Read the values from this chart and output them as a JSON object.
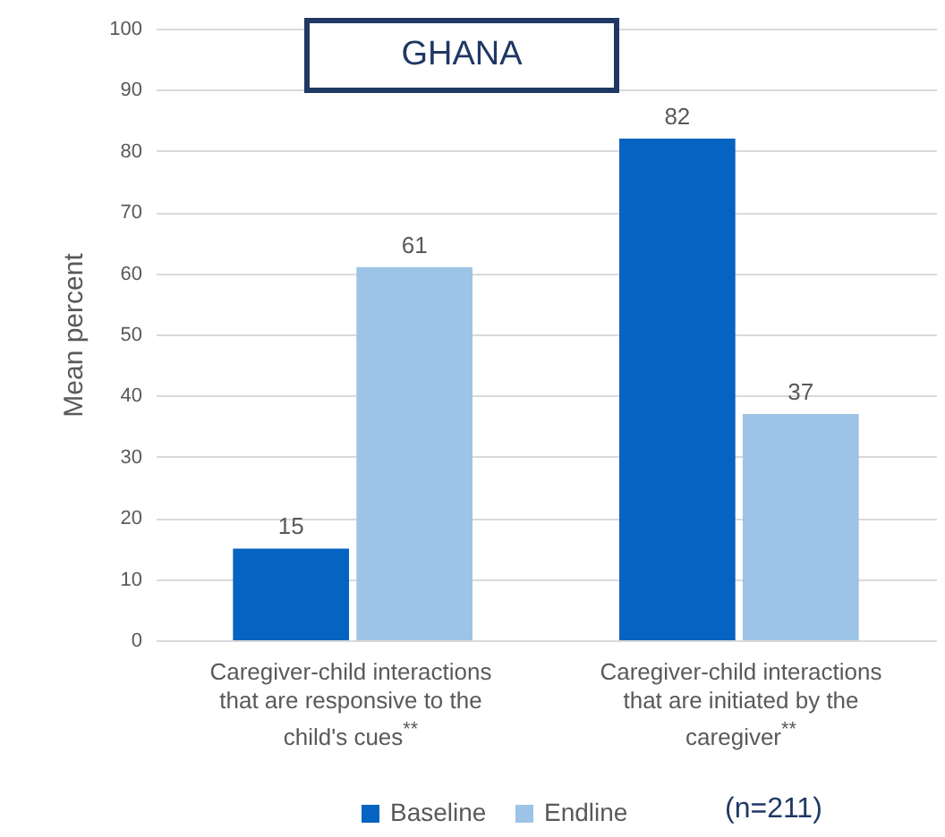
{
  "chart_data": {
    "type": "bar",
    "title": "GHANA",
    "ylabel": "Mean percent",
    "categories": [
      "Caregiver-child interactions that are responsive to the child's cues$^{**}$",
      "Caregiver-child interactions that are initiated by the caregiver$^{**}$"
    ],
    "series": [
      {
        "name": "Baseline",
        "color": "#0563c1",
        "values": [
          15,
          82
        ]
      },
      {
        "name": "Endline",
        "color": "#9dc3e6",
        "values": [
          61,
          37
        ]
      }
    ],
    "ylim": [
      0,
      100
    ],
    "yticks": [
      0,
      10,
      20,
      30,
      40,
      50,
      60,
      70,
      80,
      90,
      100
    ],
    "grid": "y",
    "legend": "bottom",
    "data_labels": true,
    "annotations": [
      "(n=211)"
    ]
  }
}
